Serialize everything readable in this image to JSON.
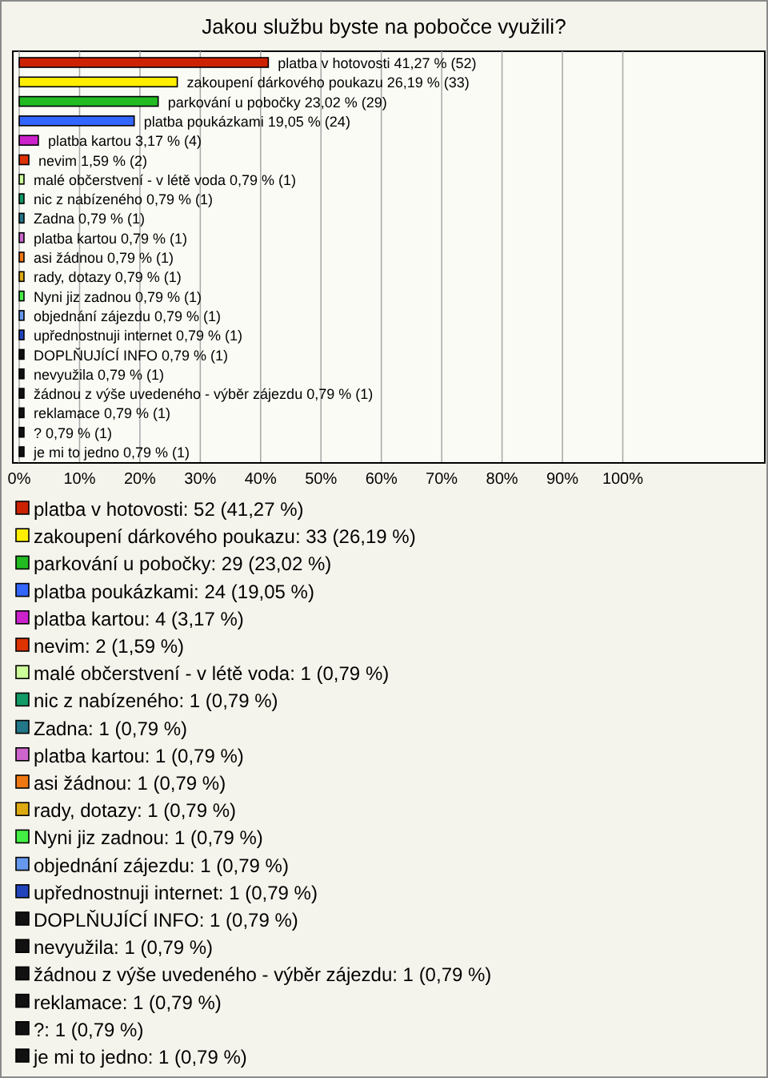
{
  "chart_data": {
    "type": "bar",
    "orientation": "horizontal",
    "title": "Jakou službu byste na pobočce využili?",
    "categories": [
      "platba v hotovosti",
      "zakoupení dárkového poukazu",
      "parkování u pobočky",
      "platba poukázkami",
      "platba kartou",
      "nevim",
      "malé občerstvení - v létě voda",
      "nic z nabízeného",
      "Zadna",
      "platba kartou",
      "asi žádnou",
      "rady, dotazy",
      "Nyni jiz zadnou",
      "objednání zájezdu",
      "upřednostnuji internet",
      "DOPLŇUJÍCÍ INFO",
      "nevyužila",
      "žádnou z výše uvedeného - výběr zájezdu",
      "reklamace",
      "?",
      "je mi to jedno"
    ],
    "values": [
      41.27,
      26.19,
      23.02,
      19.05,
      3.17,
      1.59,
      0.79,
      0.79,
      0.79,
      0.79,
      0.79,
      0.79,
      0.79,
      0.79,
      0.79,
      0.79,
      0.79,
      0.79,
      0.79,
      0.79,
      0.79
    ],
    "value_labels": [
      "41,27 % (52)",
      "26,19 % (33)",
      "23,02 % (29)",
      "19,05 % (24)",
      "3,17 % (4)",
      "1,59 % (2)",
      "0,79 % (1)",
      "0,79 % (1)",
      "0,79 % (1)",
      "0,79 % (1)",
      "0,79 % (1)",
      "0,79 % (1)",
      "0,79 % (1)",
      "0,79 % (1)",
      "0,79 % (1)",
      "0,79 % (1)",
      "0,79 % (1)",
      "0,79 % (1)",
      "0,79 % (1)",
      "0,79 % (1)",
      "0,79 % (1)"
    ],
    "colors": [
      "#cc2200",
      "#ffee00",
      "#22bb22",
      "#3366ff",
      "#cc22cc",
      "#dd3300",
      "#ccff99",
      "#119966",
      "#227788",
      "#cc66cc",
      "#ee7711",
      "#ddaa11",
      "#44ee44",
      "#6699ee",
      "#2244bb",
      "#111111",
      "#111111",
      "#111111",
      "#111111",
      "#111111",
      "#111111"
    ],
    "xlim": [
      0,
      123
    ],
    "xticks": [
      {
        "value": 0,
        "label": "0%"
      },
      {
        "value": 10,
        "label": "10%"
      },
      {
        "value": 20,
        "label": "20%"
      },
      {
        "value": 30,
        "label": "30%"
      },
      {
        "value": 40,
        "label": "40%"
      },
      {
        "value": 50,
        "label": "50%"
      },
      {
        "value": 60,
        "label": "60%"
      },
      {
        "value": 70,
        "label": "70%"
      },
      {
        "value": 80,
        "label": "80%"
      },
      {
        "value": 90,
        "label": "90%"
      },
      {
        "value": 100,
        "label": "100%"
      }
    ],
    "grid": "x",
    "annotations": [
      "platba v hotovosti: 52 (41,27 %)",
      "zakoupení dárkového poukazu: 33 (26,19 %)",
      "parkování u pobočky: 29 (23,02 %)",
      "platba poukázkami: 24 (19,05 %)",
      "platba kartou: 4 (3,17 %)",
      "nevim: 2 (1,59 %)",
      "malé občerstvení - v létě voda: 1 (0,79 %)",
      "nic z nabízeného: 1 (0,79 %)",
      "Zadna: 1 (0,79 %)",
      "platba kartou: 1 (0,79 %)",
      "asi žádnou: 1 (0,79 %)",
      "rady, dotazy: 1 (0,79 %)",
      "Nyni jiz zadnou: 1 (0,79 %)",
      "objednání zájezdu: 1 (0,79 %)",
      "upřednostnuji internet: 1 (0,79 %)",
      "DOPLŇUJÍCÍ INFO: 1 (0,79 %)",
      "nevyužila: 1 (0,79 %)",
      "žádnou z výše uvedeného - výběr zájezdu: 1 (0,79 %)",
      "reklamace: 1 (0,79 %)",
      "?: 1 (0,79 %)",
      "je mi to jedno: 1 (0,79 %)"
    ]
  }
}
